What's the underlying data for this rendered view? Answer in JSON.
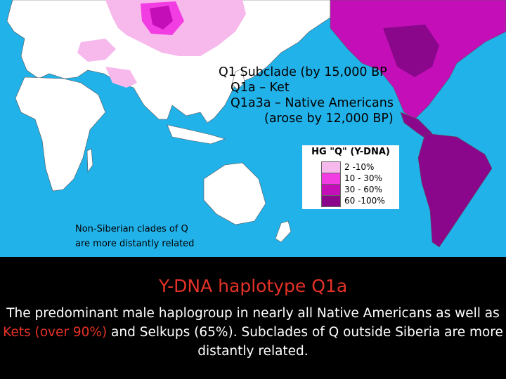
{
  "map": {
    "subclade_lines": [
      "Q1 Subclade (by 15,000 BP",
      "Q1a – Ket",
      "Q1a3a – Native Americans",
      "(arose by 12,000 BP)"
    ],
    "legend": {
      "title": "HG \"Q\" (Y-DNA)",
      "entries": [
        {
          "label": "2 -10%",
          "color": "#f7b8ec"
        },
        {
          "label": "10 - 30%",
          "color": "#f23de2"
        },
        {
          "label": "30 - 60%",
          "color": "#c40fb8"
        },
        {
          "label": "60 -100%",
          "color": "#8a078c"
        }
      ]
    },
    "note_lines": [
      "Non-Siberian clades of Q",
      "are more distantly related"
    ],
    "colors": {
      "ocean": "#22b2ea",
      "land": "#ffffff"
    }
  },
  "caption": {
    "title": "Y-DNA  haplotype  Q1a",
    "body_parts": [
      "The predominant male haplogroup in nearly all Native Americans as well as ",
      "Kets (over 90%)",
      " and Selkups (65%). Subclades of Q outside Siberia are more distantly related."
    ]
  }
}
